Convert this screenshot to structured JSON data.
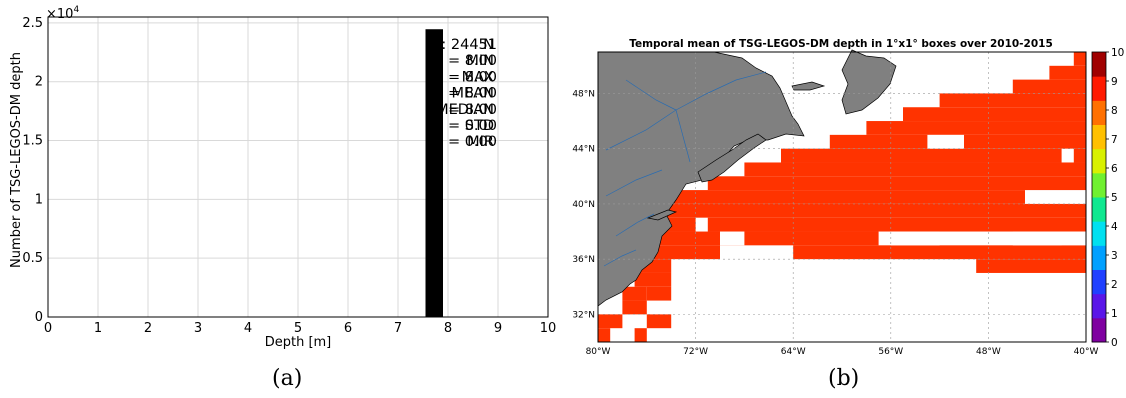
{
  "panel_a": {
    "caption": "(a)",
    "stats": [
      {
        "label": "N",
        "value": ": 24451"
      },
      {
        "label": "MIN",
        "value": "= 8.00"
      },
      {
        "label": "MAX",
        "value": "= 8.00"
      },
      {
        "label": "MEAN",
        "value": "= 8.00"
      },
      {
        "label": "MEDIAN",
        "value": "= 8.00"
      },
      {
        "label": "STD",
        "value": "= 0.00"
      },
      {
        "label": "MIR",
        "value": "= 0.00"
      }
    ]
  },
  "panel_b": {
    "caption": "(b)",
    "colors": {
      "land": "#808080",
      "ocean_cells": "#ff3300",
      "rivers": "#2b6cb0"
    }
  },
  "chart_data": [
    {
      "type": "bar",
      "title": "",
      "xlabel": "Depth [m]",
      "ylabel": "Number of TSG-LEGOS-DM depth",
      "y_multiplier_label": "×10^4",
      "xlim": [
        0,
        10
      ],
      "ylim": [
        0,
        25500
      ],
      "x_ticks": [
        "0",
        "1",
        "2",
        "3",
        "4",
        "5",
        "6",
        "7",
        "8",
        "9",
        "10"
      ],
      "y_ticks": [
        "0",
        "0.5",
        "1",
        "1.5",
        "2",
        "2.5"
      ],
      "bars": [
        {
          "x0": 7.55,
          "x1": 7.9,
          "value": 24451
        }
      ],
      "bar_color": "#000000",
      "grid": true
    },
    {
      "type": "heatmap",
      "title": "Temporal mean of TSG-LEGOS-DM depth in 1°x1° boxes over 2010-2015",
      "x_range": [
        -80,
        -40
      ],
      "y_range": [
        30,
        51
      ],
      "x_ticks": [
        "80°W",
        "72°W",
        "64°W",
        "56°W",
        "48°W",
        "40°W"
      ],
      "y_ticks": [
        "32°N",
        "36°N",
        "40°N",
        "44°N",
        "48°N"
      ],
      "cell_value": 8,
      "colorbar": {
        "range": [
          0,
          10
        ],
        "ticks": [
          "0",
          "1",
          "2",
          "3",
          "4",
          "5",
          "6",
          "7",
          "8",
          "9",
          "10"
        ],
        "colors": [
          "#7f00a0",
          "#5a16e8",
          "#2040ff",
          "#00a0ff",
          "#00e0f0",
          "#10e890",
          "#70f030",
          "#d8f000",
          "#ffc000",
          "#ff7000",
          "#ff1a00",
          "#a00000"
        ]
      },
      "grid": true
    }
  ]
}
